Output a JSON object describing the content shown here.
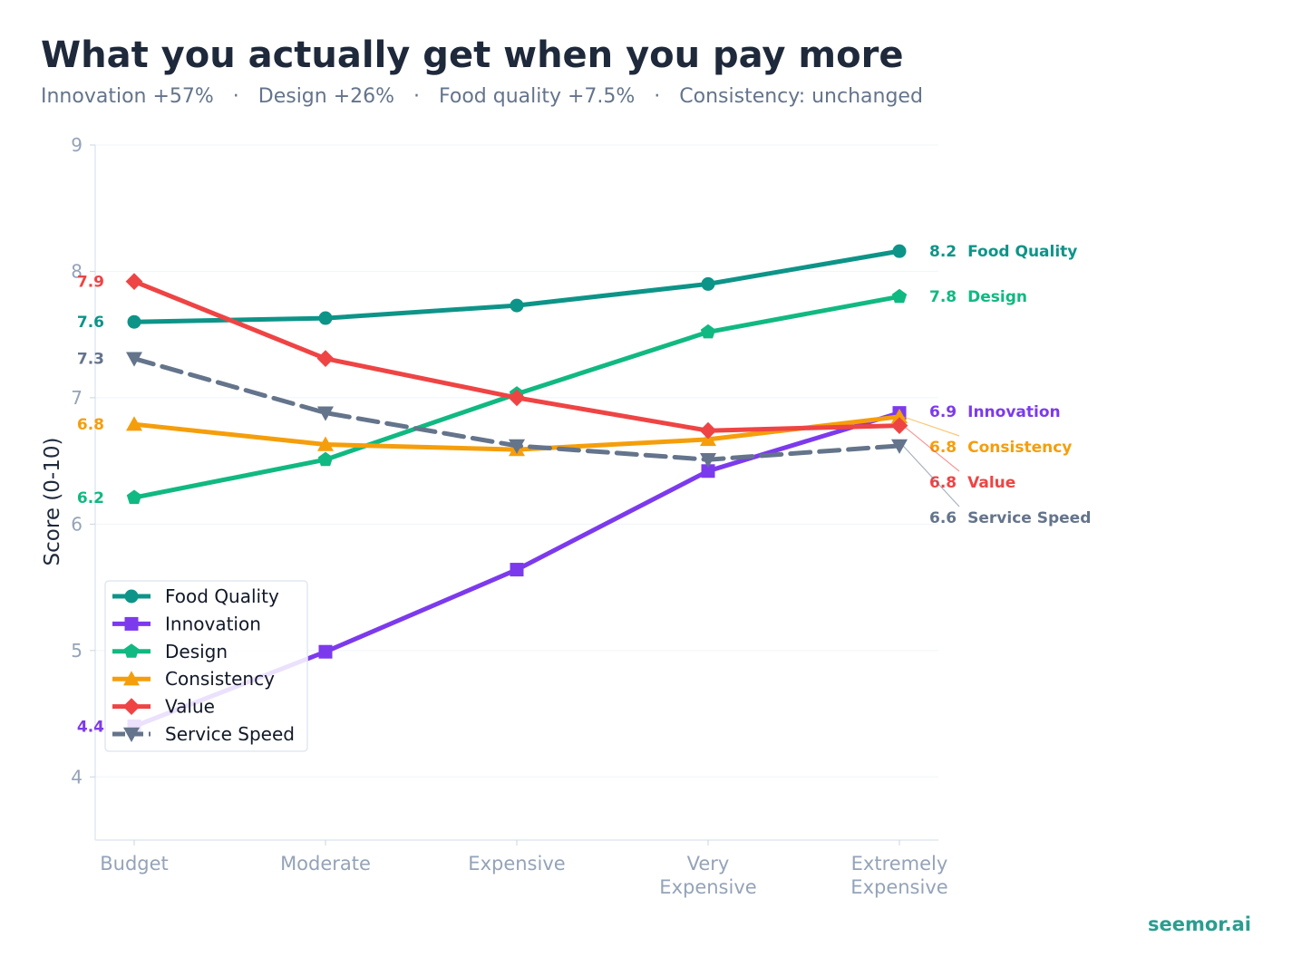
{
  "title": "What you actually get when you pay more",
  "subtitle": "Innovation +57%   ·   Design +26%   ·   Food quality +7.5%   ·   Consistency: unchanged",
  "watermark": "seemor.ai",
  "chart_data": {
    "type": "line",
    "title": "What you actually get when you pay more",
    "xlabel": "",
    "ylabel": "Score (0-10)",
    "ylim": [
      3.5,
      9
    ],
    "yticks": [
      4,
      5,
      6,
      7,
      8,
      9
    ],
    "grid": true,
    "legend_position": "lower-left",
    "categories": [
      "Budget",
      "Moderate",
      "Expensive",
      "Very\nExpensive",
      "Extremely\nExpensive"
    ],
    "series": [
      {
        "name": "Food Quality",
        "values": [
          7.6,
          7.63,
          7.73,
          7.9,
          8.16
        ],
        "color": "#0d9488",
        "marker": "circle",
        "dash": false,
        "start_label": "7.6",
        "end_label": "8.2",
        "end_name": "Food Quality"
      },
      {
        "name": "Innovation",
        "values": [
          4.4,
          4.99,
          5.64,
          6.42,
          6.88
        ],
        "color": "#7c3aed",
        "marker": "square",
        "dash": false,
        "start_label": "4.4",
        "end_label": "6.9",
        "end_name": "Innovation"
      },
      {
        "name": "Design",
        "values": [
          6.21,
          6.51,
          7.03,
          7.52,
          7.8
        ],
        "color": "#10b981",
        "marker": "pentagon",
        "dash": false,
        "start_label": "6.2",
        "end_label": "7.8",
        "end_name": "Design"
      },
      {
        "name": "Consistency",
        "values": [
          6.79,
          6.63,
          6.59,
          6.67,
          6.85
        ],
        "color": "#f59e0b",
        "marker": "triangle-up",
        "dash": false,
        "start_label": "6.8",
        "end_label": "6.8",
        "end_name": "Consistency"
      },
      {
        "name": "Value",
        "values": [
          7.92,
          7.31,
          7.0,
          6.74,
          6.78
        ],
        "color": "#ef4444",
        "marker": "diamond",
        "dash": false,
        "start_label": "7.9",
        "end_label": "6.8",
        "end_name": "Value"
      },
      {
        "name": "Service Speed",
        "values": [
          7.31,
          6.88,
          6.62,
          6.51,
          6.62
        ],
        "color": "#64748b",
        "marker": "triangle-down",
        "dash": true,
        "start_label": "7.3",
        "end_label": "6.6",
        "end_name": "Service Speed"
      }
    ]
  }
}
